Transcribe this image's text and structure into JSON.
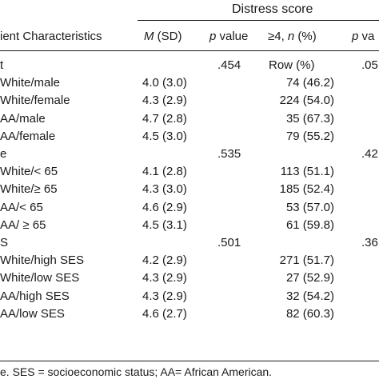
{
  "table": {
    "spanner": "Distress score",
    "headers": {
      "characteristics": "ient Characteristics",
      "msd_m": "M",
      "msd_sd": " (SD)",
      "pvalue": "p value",
      "ge4_prefix": "≥4, ",
      "ge4_n": "n",
      "ge4_suffix": " (%)",
      "last_p": "p va"
    },
    "groups": [
      {
        "label": "t",
        "p": ".454",
        "extra": "Row (%)",
        "last": ".05",
        "rows": [
          {
            "label": "White/male",
            "msd": "4.0 (3.0)",
            "n": "74 (46.2)"
          },
          {
            "label": "White/female",
            "msd": "4.3 (2.9)",
            "n": "224 (54.0)"
          },
          {
            "label": "AA/male",
            "msd": "4.7 (2.8)",
            "n": "35 (67.3)"
          },
          {
            "label": "AA/female",
            "msd": "4.5 (3.0)",
            "n": "79 (55.2)"
          }
        ]
      },
      {
        "label": "e",
        "p": ".535",
        "extra": "",
        "last": ".42",
        "rows": [
          {
            "label": "White/< 65",
            "msd": "4.1 (2.8)",
            "n": "113 (51.1)"
          },
          {
            "label": "White/≥ 65",
            "msd": "4.3 (3.0)",
            "n": "185 (52.4)"
          },
          {
            "label": "AA/< 65",
            "msd": "4.6 (2.9)",
            "n": "53 (57.0)"
          },
          {
            "label": "AA/ ≥ 65",
            "msd": "4.5 (3.1)",
            "n": "61 (59.8)"
          }
        ]
      },
      {
        "label": "S",
        "p": ".501",
        "extra": "",
        "last": ".36",
        "rows": [
          {
            "label": "White/high SES",
            "msd": "4.2 (2.9)",
            "n": "271 (51.7)"
          },
          {
            "label": "White/low SES",
            "msd": "4.3 (2.9)",
            "n": "27 (52.9)"
          },
          {
            "label": "AA/high SES",
            "msd": "4.3 (2.9)",
            "n": "32 (54.2)"
          },
          {
            "label": "AA/low SES",
            "msd": "4.6 (2.7)",
            "n": "82 (60.3)"
          }
        ]
      }
    ],
    "footnote": "e. SES = socioeconomic status; AA= African American."
  }
}
